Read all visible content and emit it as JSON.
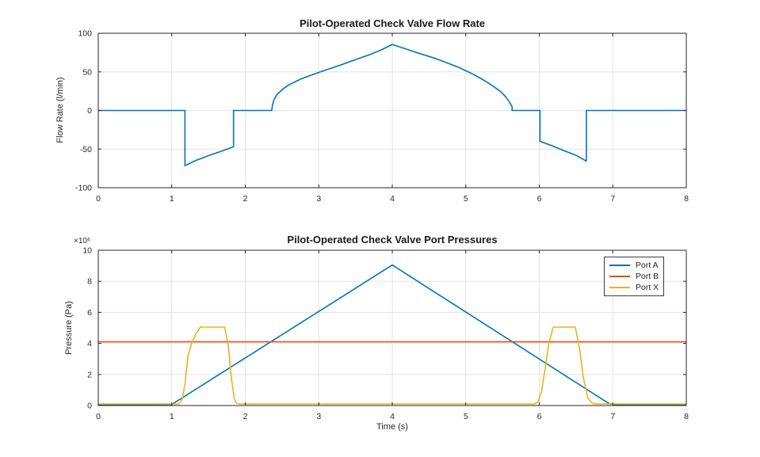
{
  "figure": {
    "background": "#ffffff",
    "axis_color": "#262626",
    "grid_color": "#e3e3e3"
  },
  "chart_data": [
    {
      "type": "line",
      "title": "Pilot-Operated Check Valve Flow Rate",
      "xlabel": "",
      "ylabel": "Flow Rate (l/min)",
      "xlim": [
        0,
        8
      ],
      "ylim": [
        -100,
        100
      ],
      "x_ticks": [
        0,
        1,
        2,
        3,
        4,
        5,
        6,
        7,
        8
      ],
      "y_ticks": [
        -100,
        -50,
        0,
        50,
        100
      ],
      "grid": true,
      "legend": null,
      "series": [
        {
          "name": "Flow Rate",
          "color": "#0072BD",
          "points": [
            [
              0,
              0
            ],
            [
              1.18,
              0
            ],
            [
              1.18,
              -71.5
            ],
            [
              1.32,
              -65
            ],
            [
              1.5,
              -58.5
            ],
            [
              1.68,
              -52.5
            ],
            [
              1.84,
              -47
            ],
            [
              1.84,
              0
            ],
            [
              2.36,
              0
            ],
            [
              2.37,
              7
            ],
            [
              2.39,
              14
            ],
            [
              2.43,
              20.5
            ],
            [
              2.5,
              27
            ],
            [
              2.6,
              33.5
            ],
            [
              2.75,
              40.5
            ],
            [
              2.9,
              46
            ],
            [
              3.1,
              52.5
            ],
            [
              3.3,
              59
            ],
            [
              3.5,
              66
            ],
            [
              3.7,
              72.5
            ],
            [
              3.85,
              78.5
            ],
            [
              4,
              85.5
            ],
            [
              4.3,
              76
            ],
            [
              4.6,
              67
            ],
            [
              4.9,
              56
            ],
            [
              5.1,
              47
            ],
            [
              5.25,
              39
            ],
            [
              5.38,
              31
            ],
            [
              5.48,
              24
            ],
            [
              5.55,
              17
            ],
            [
              5.6,
              10
            ],
            [
              5.63,
              5
            ],
            [
              5.63,
              0
            ],
            [
              6.01,
              0
            ],
            [
              6.01,
              -40
            ],
            [
              6.18,
              -46
            ],
            [
              6.35,
              -52.5
            ],
            [
              6.5,
              -58
            ],
            [
              6.64,
              -65.5
            ],
            [
              6.64,
              0
            ],
            [
              8,
              0
            ]
          ]
        }
      ]
    },
    {
      "type": "line",
      "title": "Pilot-Operated Check Valve Port Pressures",
      "xlabel": "Time (s)",
      "ylabel": "Pressure (Pa)",
      "y_exponent": "×10⁶",
      "y_unit_scale": 1000000,
      "xlim": [
        0,
        8
      ],
      "ylim": [
        0,
        10
      ],
      "x_ticks": [
        0,
        1,
        2,
        3,
        4,
        5,
        6,
        7,
        8
      ],
      "y_ticks": [
        0,
        2,
        4,
        6,
        8,
        10
      ],
      "grid": true,
      "legend_position": "top-right",
      "series": [
        {
          "name": "Port A",
          "color": "#0072BD",
          "points": [
            [
              0,
              0.05
            ],
            [
              1,
              0.07
            ],
            [
              4,
              9.05
            ],
            [
              6.95,
              0.12
            ],
            [
              7.03,
              0.06
            ],
            [
              8,
              0.05
            ]
          ]
        },
        {
          "name": "Port B",
          "color": "#D95319",
          "points": [
            [
              0,
              4.1
            ],
            [
              8,
              4.1
            ]
          ]
        },
        {
          "name": "Port X",
          "color": "#EDB120",
          "points": [
            [
              0,
              0.1
            ],
            [
              1.1,
              0.1
            ],
            [
              1.14,
              0.35
            ],
            [
              1.18,
              1.4
            ],
            [
              1.22,
              3.2
            ],
            [
              1.27,
              4
            ],
            [
              1.33,
              4.65
            ],
            [
              1.39,
              5.05
            ],
            [
              1.72,
              5.05
            ],
            [
              1.77,
              3.8
            ],
            [
              1.81,
              1.8
            ],
            [
              1.85,
              0.45
            ],
            [
              1.88,
              0.15
            ],
            [
              1.92,
              0.1
            ],
            [
              5.93,
              0.1
            ],
            [
              5.98,
              0.2
            ],
            [
              6.03,
              0.9
            ],
            [
              6.08,
              2.4
            ],
            [
              6.13,
              4
            ],
            [
              6.19,
              5.05
            ],
            [
              6.49,
              5.05
            ],
            [
              6.55,
              3.6
            ],
            [
              6.6,
              1.8
            ],
            [
              6.66,
              0.5
            ],
            [
              6.72,
              0.15
            ],
            [
              6.78,
              0.1
            ],
            [
              8,
              0.1
            ]
          ]
        }
      ]
    }
  ]
}
